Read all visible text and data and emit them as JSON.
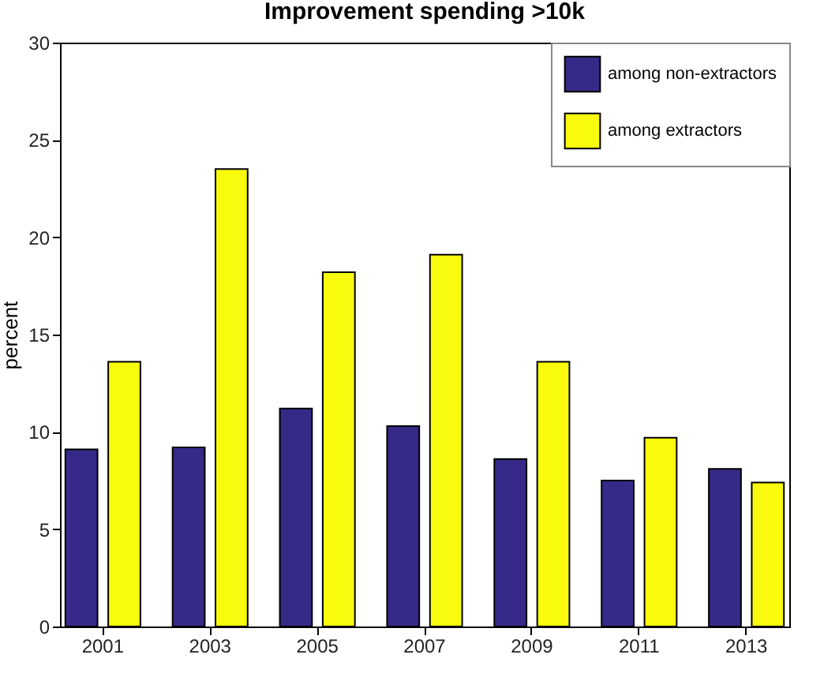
{
  "chart_data": {
    "type": "bar",
    "title": "Improvement spending >10k",
    "ylabel": "percent",
    "categories": [
      "2001",
      "2003",
      "2005",
      "2007",
      "2009",
      "2011",
      "2013"
    ],
    "series": [
      {
        "name": "among non-extractors",
        "color": "#352a87",
        "values": [
          9.1,
          9.2,
          11.2,
          10.3,
          8.6,
          7.5,
          8.1
        ]
      },
      {
        "name": "among extractors",
        "color": "#f9fb0e",
        "values": [
          13.6,
          23.5,
          18.2,
          19.1,
          13.6,
          9.7,
          7.4
        ]
      }
    ],
    "ylim": [
      0,
      30
    ],
    "yticks": [
      0,
      5,
      10,
      15,
      20,
      25,
      30
    ],
    "grid": false,
    "legend": "top right"
  }
}
